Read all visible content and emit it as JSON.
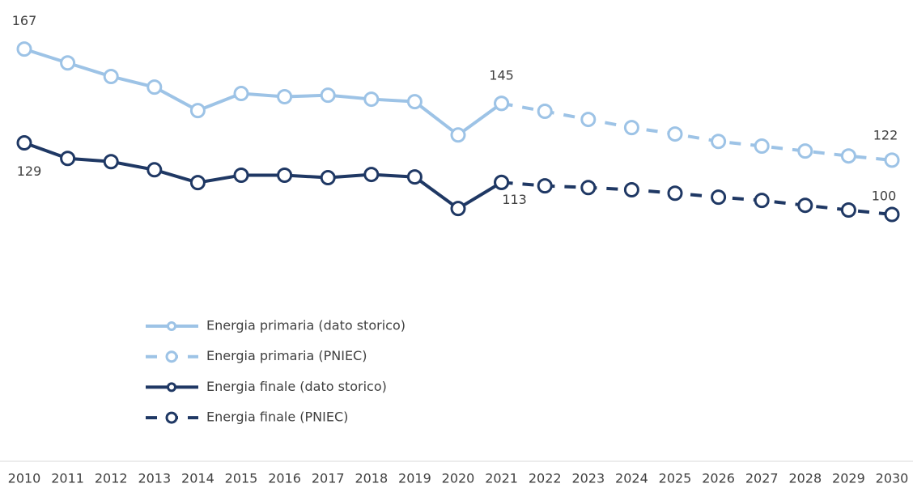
{
  "chart_data": {
    "type": "line",
    "categories": [
      "2010",
      "2011",
      "2012",
      "2013",
      "2014",
      "2015",
      "2016",
      "2017",
      "2018",
      "2019",
      "2020",
      "2021",
      "2022",
      "2023",
      "2024",
      "2025",
      "2026",
      "2027",
      "2028",
      "2029",
      "2030"
    ],
    "ylim": [
      0,
      180
    ],
    "series": [
      {
        "name": "Energia primaria (dato storico)",
        "color": "#9dc3e6",
        "dashed": false,
        "values": [
          167,
          161.4,
          155.9,
          151.6,
          142.1,
          149,
          147.7,
          148.3,
          146.7,
          145.7,
          132.2,
          145,
          null,
          null,
          null,
          null,
          null,
          null,
          null,
          null,
          null
        ]
      },
      {
        "name": "Energia primaria (PNIEC)",
        "color": "#9dc3e6",
        "dashed": true,
        "values": [
          null,
          null,
          null,
          null,
          null,
          null,
          null,
          null,
          null,
          null,
          null,
          145,
          141.8,
          138.5,
          135.2,
          132.6,
          129.6,
          127.7,
          125.7,
          123.7,
          122
        ]
      },
      {
        "name": "Energia finale (dato storico)",
        "color": "#1f3864",
        "dashed": false,
        "values": [
          129,
          122.7,
          121.4,
          118.1,
          112.9,
          115.9,
          115.9,
          114.9,
          116.2,
          115.2,
          102.4,
          113,
          null,
          null,
          null,
          null,
          null,
          null,
          null,
          null,
          null
        ]
      },
      {
        "name": "Energia finale (PNIEC)",
        "color": "#1f3864",
        "dashed": true,
        "values": [
          null,
          null,
          null,
          null,
          null,
          null,
          null,
          null,
          null,
          null,
          null,
          113,
          111.6,
          110.9,
          110,
          108.6,
          107,
          105.7,
          103.7,
          101.8,
          100
        ]
      }
    ]
  }
}
